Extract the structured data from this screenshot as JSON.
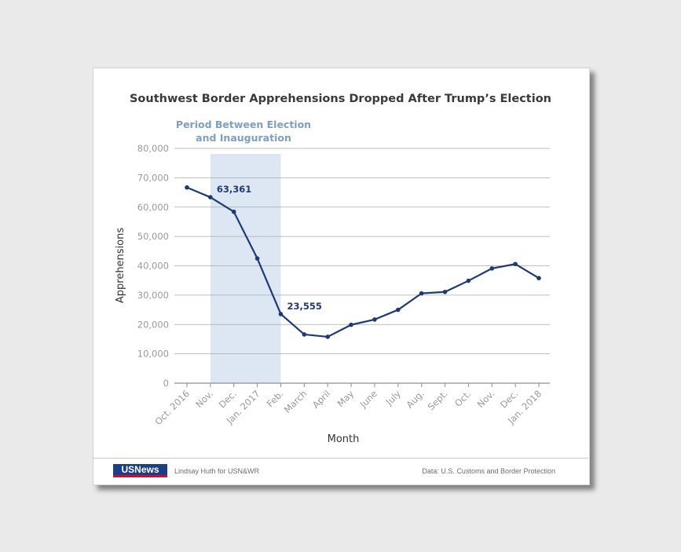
{
  "chart_data": {
    "type": "line",
    "title": "Southwest Border Apprehensions Dropped After Trump’s Election",
    "xlabel": "Month",
    "ylabel": "Apprehensions",
    "ylim": [
      0,
      80000
    ],
    "yticks": [
      0,
      10000,
      20000,
      30000,
      40000,
      50000,
      60000,
      70000,
      80000
    ],
    "ytick_labels": [
      "0",
      "10,000",
      "20,000",
      "30,000",
      "40,000",
      "50,000",
      "60,000",
      "70,000",
      "80,000"
    ],
    "categories": [
      "Oct. 2016",
      "Nov.",
      "Dec.",
      "Jan. 2017",
      "Feb.",
      "March",
      "April",
      "May",
      "June",
      "July",
      "Aug.",
      "Sept.",
      "Oct.",
      "Nov.",
      "Dec.",
      "Jan. 2018"
    ],
    "series": [
      {
        "values": [
          66700,
          63361,
          58400,
          42500,
          23555,
          16600,
          15800,
          19900,
          21700,
          25000,
          30600,
          31100,
          34900,
          39100,
          40600,
          35800
        ]
      }
    ],
    "line_color": "#1f3a73",
    "highlight": {
      "label_line1": "Period Between Election",
      "label_line2": "and Inauguration",
      "from_category": "Nov.",
      "to_category": "Feb.",
      "color": "#dde6f3"
    },
    "annotations": [
      {
        "category": "Nov.",
        "text": "63,361"
      },
      {
        "category": "Feb.",
        "text": "23,555"
      }
    ],
    "grid": true
  },
  "footer": {
    "logo_text": "USNews",
    "credit": "Lindsay Huth for USN&WR",
    "source": "Data: U.S. Customs and Border Protection"
  }
}
